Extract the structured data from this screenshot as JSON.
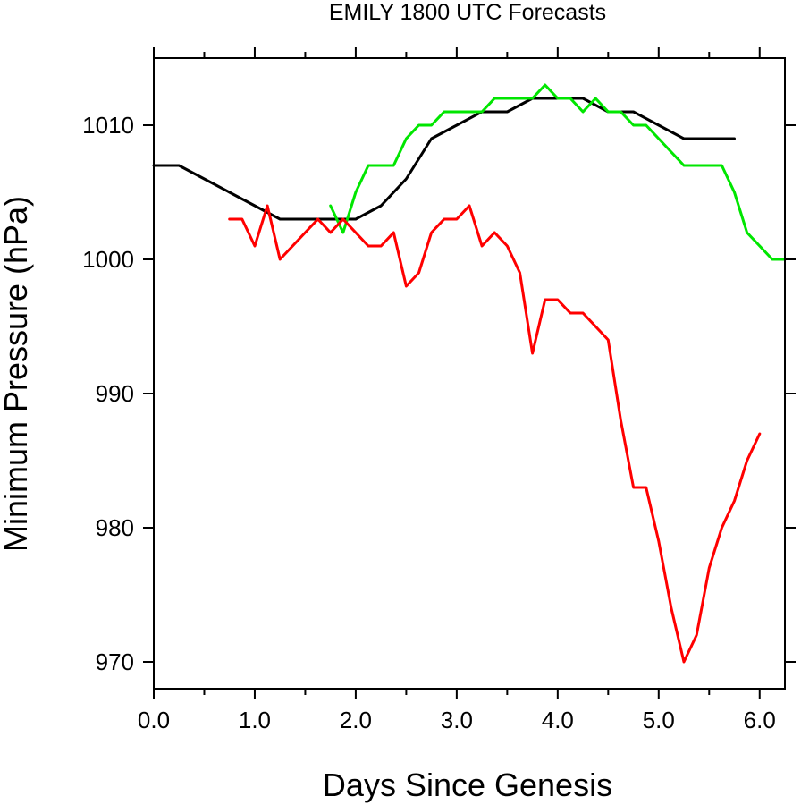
{
  "chart_data": {
    "type": "line",
    "title": "EMILY 1800 UTC Forecasts",
    "xlabel": "Days Since Genesis",
    "ylabel": "Minimum Pressure (hPa)",
    "xlim": [
      0.0,
      6.25
    ],
    "ylim": [
      968.0,
      1015.0
    ],
    "x_ticks": [
      0.0,
      1.0,
      2.0,
      3.0,
      4.0,
      5.0,
      6.0
    ],
    "x_tick_labels": [
      "0.0",
      "1.0",
      "2.0",
      "3.0",
      "4.0",
      "5.0",
      "6.0"
    ],
    "y_ticks": [
      970,
      980,
      990,
      1000,
      1010
    ],
    "y_tick_labels": [
      "970",
      "980",
      "990",
      "1000",
      "1010"
    ],
    "x_minor_ticks": [
      0.5,
      1.5,
      2.5,
      3.5,
      4.5,
      5.5
    ],
    "grid": false,
    "legend": "none",
    "series": [
      {
        "color": "#000000",
        "x": [
          0.0,
          0.25,
          0.5,
          0.75,
          1.0,
          1.25,
          1.5,
          1.75,
          2.0,
          2.25,
          2.5,
          2.75,
          3.0,
          3.25,
          3.5,
          3.75,
          4.0,
          4.25,
          4.5,
          4.75,
          5.0,
          5.25,
          5.5,
          5.75
        ],
        "y": [
          1007,
          1007,
          1006,
          1005,
          1004,
          1003,
          1003,
          1003,
          1003,
          1004,
          1006,
          1009,
          1010,
          1011,
          1011,
          1012,
          1012,
          1012,
          1011,
          1011,
          1010,
          1009,
          1009,
          1009
        ]
      },
      {
        "color": "#00e600",
        "x": [
          1.75,
          1.875,
          2.0,
          2.125,
          2.25,
          2.375,
          2.5,
          2.625,
          2.75,
          2.875,
          3.0,
          3.125,
          3.25,
          3.375,
          3.5,
          3.625,
          3.75,
          3.875,
          4.0,
          4.125,
          4.25,
          4.375,
          4.5,
          4.625,
          4.75,
          4.875,
          5.0,
          5.125,
          5.25,
          5.375,
          5.5,
          5.625,
          5.75,
          5.875,
          6.0,
          6.125,
          6.25
        ],
        "y": [
          1004,
          1002,
          1005,
          1007,
          1007,
          1007,
          1009,
          1010,
          1010,
          1011,
          1011,
          1011,
          1011,
          1012,
          1012,
          1012,
          1012,
          1013,
          1012,
          1012,
          1011,
          1012,
          1011,
          1011,
          1010,
          1010,
          1009,
          1008,
          1007,
          1007,
          1007,
          1007,
          1005,
          1002,
          1001,
          1000,
          1000
        ]
      },
      {
        "color": "#ff0000",
        "x": [
          0.75,
          0.875,
          1.0,
          1.125,
          1.25,
          1.375,
          1.5,
          1.625,
          1.75,
          1.875,
          2.0,
          2.125,
          2.25,
          2.375,
          2.5,
          2.625,
          2.75,
          2.875,
          3.0,
          3.125,
          3.25,
          3.375,
          3.5,
          3.625,
          3.75,
          3.875,
          4.0,
          4.125,
          4.25,
          4.375,
          4.5,
          4.625,
          4.75,
          4.875,
          5.0,
          5.125,
          5.25,
          5.375,
          5.5,
          5.625,
          5.75,
          5.875,
          6.0
        ],
        "y": [
          1003,
          1003,
          1001,
          1004,
          1000,
          1001,
          1002,
          1003,
          1002,
          1003,
          1002,
          1001,
          1001,
          1002,
          998,
          999,
          1002,
          1003,
          1003,
          1004,
          1001,
          1002,
          1001,
          999,
          993,
          997,
          997,
          996,
          996,
          995,
          994,
          988,
          983,
          983,
          979,
          974,
          970,
          972,
          977,
          980,
          982,
          985,
          987
        ]
      }
    ]
  }
}
